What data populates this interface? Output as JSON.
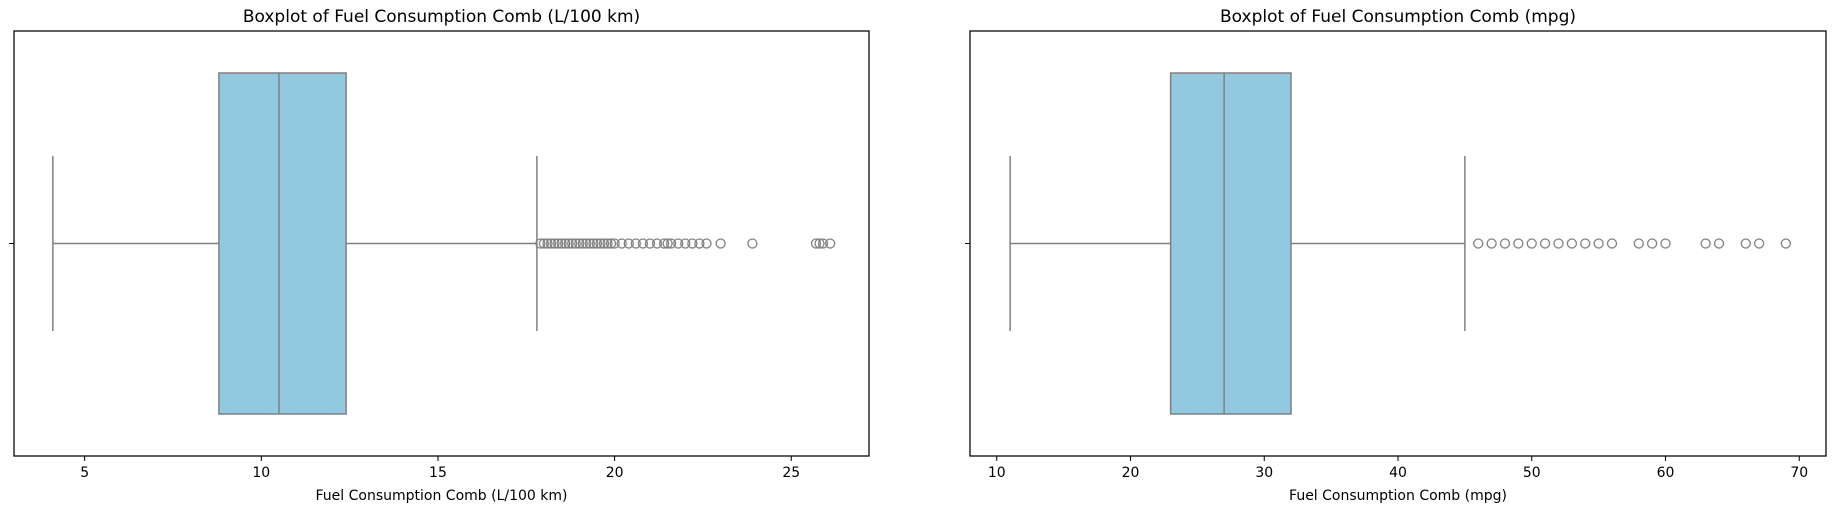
{
  "chart_data": [
    {
      "type": "boxplot",
      "title": "Boxplot of Fuel Consumption Comb (L/100 km)",
      "xlabel": "Fuel Consumption Comb (L/100 km)",
      "ylabel": "",
      "xlim": [
        3.0,
        27.2
      ],
      "xticks": [
        5,
        10,
        15,
        20,
        25
      ],
      "grid": false,
      "box_color": "#92c9e0",
      "line_color": "#808080",
      "stats": {
        "whisker_low": 4.1,
        "q1": 8.8,
        "median": 10.5,
        "q3": 12.4,
        "whisker_high": 17.8
      },
      "outliers": [
        17.9,
        18.0,
        18.1,
        18.2,
        18.3,
        18.4,
        18.5,
        18.6,
        18.7,
        18.8,
        18.9,
        19.0,
        19.1,
        19.2,
        19.3,
        19.4,
        19.5,
        19.6,
        19.7,
        19.8,
        19.9,
        20.0,
        20.2,
        20.4,
        20.6,
        20.8,
        21.0,
        21.2,
        21.4,
        21.5,
        21.6,
        21.8,
        22.0,
        22.2,
        22.4,
        22.6,
        23.0,
        23.9,
        25.7,
        25.8,
        25.9,
        26.1
      ]
    },
    {
      "type": "boxplot",
      "title": "Boxplot of Fuel Consumption Comb (mpg)",
      "xlabel": "Fuel Consumption Comb (mpg)",
      "ylabel": "",
      "xlim": [
        8.0,
        72.0
      ],
      "xticks": [
        10,
        20,
        30,
        40,
        50,
        60,
        70
      ],
      "grid": false,
      "box_color": "#92c9e0",
      "line_color": "#808080",
      "stats": {
        "whisker_low": 11,
        "q1": 23,
        "median": 27,
        "q3": 32,
        "whisker_high": 45
      },
      "outliers": [
        46,
        47,
        48,
        49,
        50,
        51,
        52,
        53,
        54,
        55,
        56,
        58,
        59,
        60,
        63,
        64,
        66,
        67,
        69
      ]
    }
  ]
}
